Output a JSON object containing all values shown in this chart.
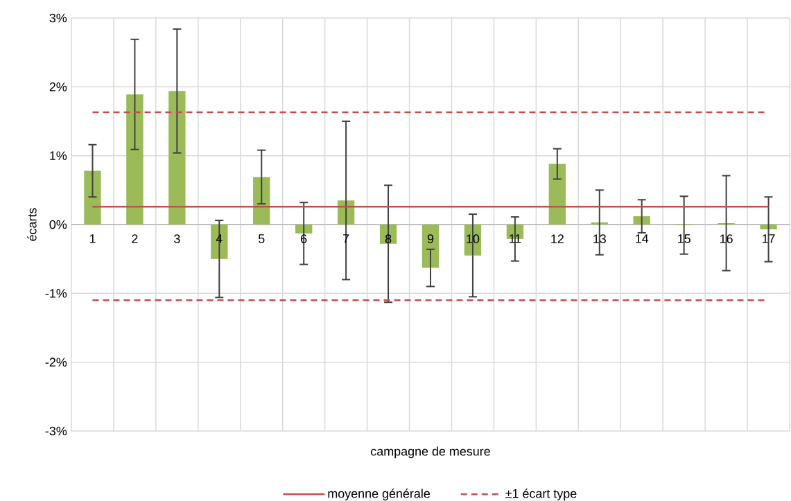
{
  "chart_data": {
    "type": "bar",
    "xlabel": "campagne de mesure",
    "ylabel": "écarts",
    "categories": [
      "1",
      "2",
      "3",
      "4",
      "5",
      "6",
      "7",
      "8",
      "9",
      "10",
      "11",
      "12",
      "13",
      "14",
      "15",
      "16",
      "17"
    ],
    "values": [
      0.78,
      1.89,
      1.94,
      -0.5,
      0.69,
      -0.13,
      0.35,
      -0.28,
      -0.63,
      -0.45,
      -0.21,
      0.88,
      0.03,
      0.12,
      -0.01,
      0.02,
      -0.07
    ],
    "errors": [
      0.38,
      0.8,
      0.9,
      0.56,
      0.39,
      0.45,
      1.15,
      0.85,
      0.27,
      0.6,
      0.32,
      0.22,
      0.47,
      0.24,
      0.42,
      0.69,
      0.47
    ],
    "color": "#9bbb59",
    "ylim": [
      -3,
      3
    ],
    "yticks": [
      {
        "value": -3,
        "label": "-3%"
      },
      {
        "value": -2,
        "label": "-2%"
      },
      {
        "value": -1,
        "label": "-1%"
      },
      {
        "value": 0,
        "label": "0%"
      },
      {
        "value": 1,
        "label": "1%"
      },
      {
        "value": 2,
        "label": "2%"
      },
      {
        "value": 3,
        "label": "3%"
      }
    ],
    "ref_lines": [
      {
        "axis": "y",
        "value": 0.26,
        "label": "moyenne générale",
        "color": "#c0504d",
        "line_style": "solid"
      },
      {
        "axis": "y",
        "value": 1.63,
        "label": "±1 écart type",
        "color": "#c0504d",
        "line_style": "dashed"
      },
      {
        "axis": "y",
        "value": -1.1,
        "color": "#c0504d",
        "line_style": "dashed"
      }
    ],
    "grid": true,
    "legend": "bottom"
  }
}
